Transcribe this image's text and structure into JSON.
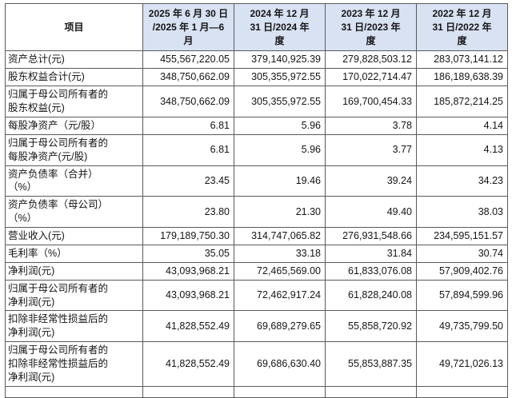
{
  "colors": {
    "header_bg": "#d9e2f3",
    "border": "#5a5a5a",
    "page_bg": "#ffffff",
    "text": "#141414"
  },
  "table": {
    "columns": [
      "项目",
      "2025 年 6 月 30 日\n/2025 年 1 月—6\n月",
      "2024 年 12 月\n31 日/2024 年\n度",
      "2023 年 12 月\n31 日/2023 年\n度",
      "2022 年 12 月\n31 日/2022 年\n度"
    ],
    "rows": [
      {
        "label": "资产总计(元)",
        "values": [
          "455,567,220.05",
          "379,140,925.39",
          "279,828,503.12",
          "283,073,141.12"
        ]
      },
      {
        "label": "股东权益合计(元)",
        "values": [
          "348,750,662.09",
          "305,355,972.55",
          "170,022,714.47",
          "186,189,638.39"
        ]
      },
      {
        "label": "归属于母公司所有者的\n股东权益(元)",
        "values": [
          "348,750,662.09",
          "305,355,972.55",
          "169,700,454.33",
          "185,872,214.25"
        ]
      },
      {
        "label": "每股净资产（元/股）",
        "values": [
          "6.81",
          "5.96",
          "3.78",
          "4.14"
        ]
      },
      {
        "label": "归属于母公司所有者的\n每股净资产(元/股)",
        "values": [
          "6.81",
          "5.96",
          "3.77",
          "4.13"
        ]
      },
      {
        "label": "资产负债率（合并）\n（%）",
        "values": [
          "23.45",
          "19.46",
          "39.24",
          "34.23"
        ]
      },
      {
        "label": "资产负债率（母公司）\n（%）",
        "values": [
          "23.80",
          "21.30",
          "49.40",
          "38.03"
        ]
      },
      {
        "label": "营业收入(元)",
        "values": [
          "179,189,750.30",
          "314,747,065.82",
          "276,931,548.66",
          "234,595,151.57"
        ]
      },
      {
        "label": "毛利率（%）",
        "values": [
          "35.05",
          "33.18",
          "31.84",
          "30.74"
        ]
      },
      {
        "label": "净利润(元)",
        "values": [
          "43,093,968.21",
          "72,465,569.00",
          "61,833,076.08",
          "57,909,402.76"
        ]
      },
      {
        "label": "归属于母公司所有者的\n净利润(元)",
        "values": [
          "43,093,968.21",
          "72,462,917.24",
          "61,828,240.08",
          "57,894,599.96"
        ]
      },
      {
        "label": "扣除非经常性损益后的\n净利润(元)",
        "values": [
          "41,828,552.49",
          "69,689,279.65",
          "55,858,720.92",
          "49,735,799.50"
        ]
      },
      {
        "label": "归属于母公司所有者的\n扣除非经常性损益后的\n净利润(元)",
        "values": [
          "41,828,552.49",
          "69,686,630.40",
          "55,853,887.35",
          "49,721,026.13"
        ]
      }
    ]
  }
}
